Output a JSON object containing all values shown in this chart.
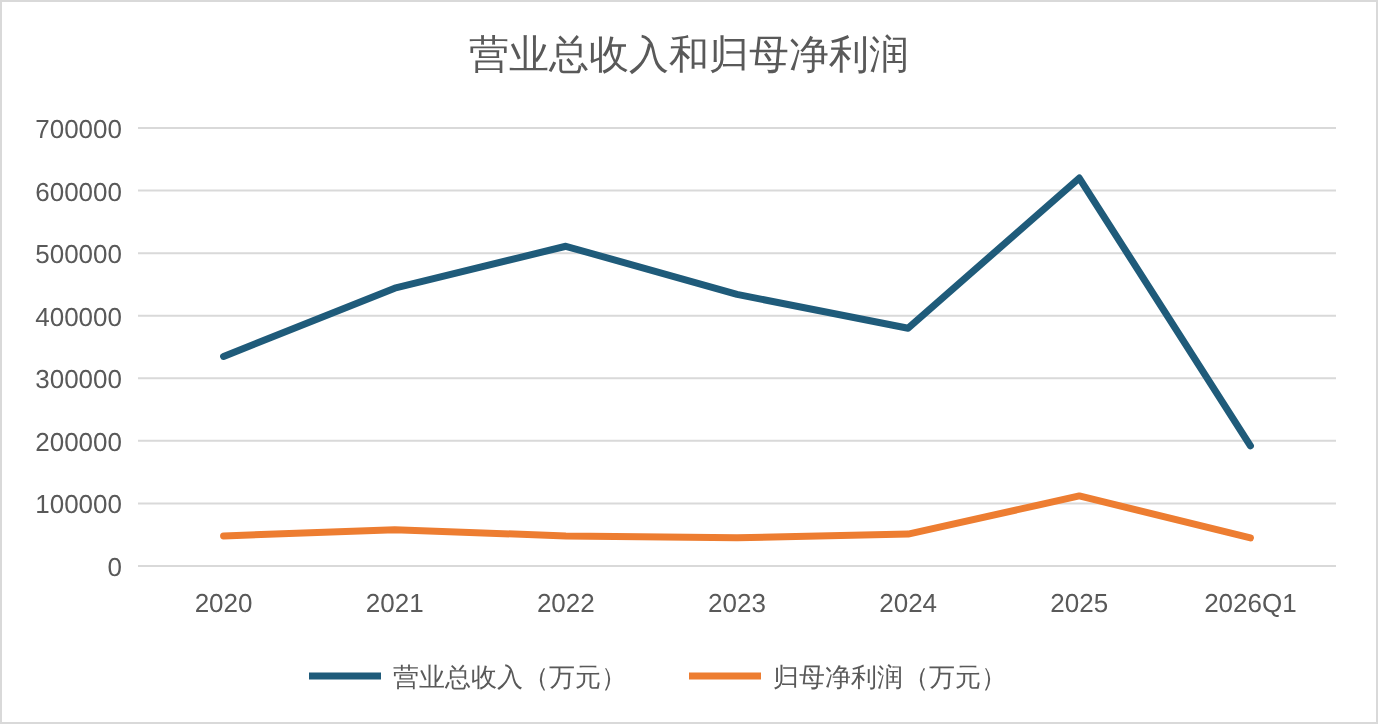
{
  "chart_data": {
    "type": "line",
    "title": "营业总收入和归母净利润",
    "categories": [
      "2020",
      "2021",
      "2022",
      "2023",
      "2024",
      "2025",
      "2026Q1"
    ],
    "series": [
      {
        "name": "营业总收入（万元）",
        "color": "#1f5b7a",
        "values": [
          335000,
          444000,
          511000,
          434000,
          380000,
          620000,
          192000
        ]
      },
      {
        "name": "归母净利润（万元）",
        "color": "#ed7d31",
        "values": [
          48000,
          58000,
          48000,
          45000,
          51000,
          112000,
          45000
        ]
      }
    ],
    "ylim": [
      0,
      700000
    ],
    "yticks": [
      0,
      100000,
      200000,
      300000,
      400000,
      500000,
      600000,
      700000
    ],
    "grid": "y",
    "legend": "bottom",
    "marker": "none",
    "line_style": "solid"
  }
}
